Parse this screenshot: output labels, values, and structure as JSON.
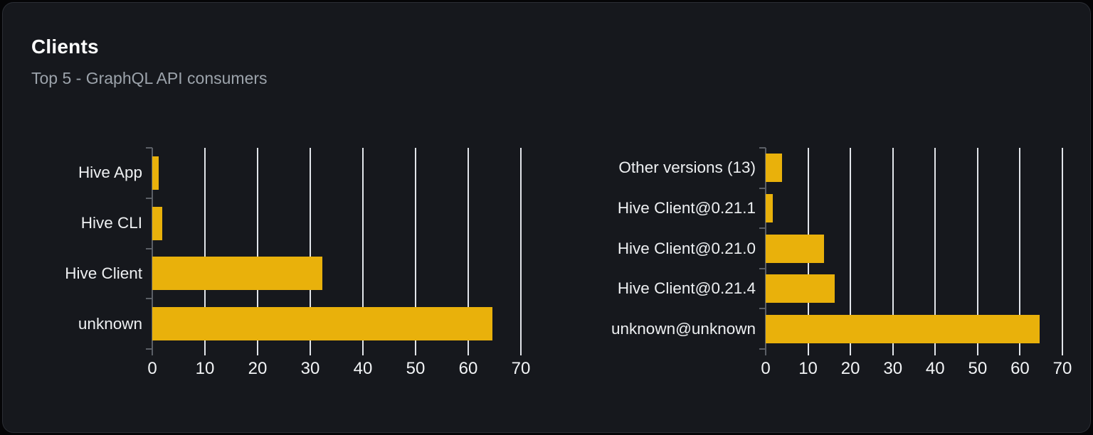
{
  "page": {
    "title": "Clients",
    "subtitle": "Top 5 - GraphQL API consumers"
  },
  "colors": {
    "page_bg": "#050507",
    "card_bg": "#16181d",
    "card_border": "#2b2e35",
    "title": "#ffffff",
    "subtitle": "#9ca3ab",
    "bar": "#e9b10b",
    "gridline": "#e2e5ea",
    "axis": "#5b5f66",
    "category_label": "#eef0f2",
    "tick_label": "#f2f4f6"
  },
  "chart_data": [
    {
      "type": "bar",
      "orientation": "horizontal",
      "name": "clients",
      "categories": [
        "Hive App",
        "Hive CLI",
        "Hive Client",
        "unknown"
      ],
      "values": [
        1.2,
        1.9,
        32.3,
        64.6
      ],
      "xlim": [
        0,
        70
      ],
      "xticks": [
        0,
        10,
        20,
        30,
        40,
        50,
        60,
        70
      ],
      "grid": "vertical",
      "legend": "none",
      "title": ""
    },
    {
      "type": "bar",
      "orientation": "horizontal",
      "name": "client-versions",
      "categories": [
        "Other versions (13)",
        "Hive Client@0.21.1",
        "Hive Client@0.21.0",
        "Hive Client@0.21.4",
        "unknown@unknown"
      ],
      "values": [
        3.8,
        1.6,
        13.7,
        16.3,
        64.6
      ],
      "xlim": [
        0,
        70
      ],
      "xticks": [
        0,
        10,
        20,
        30,
        40,
        50,
        60,
        70
      ],
      "grid": "vertical",
      "legend": "none",
      "title": ""
    }
  ]
}
